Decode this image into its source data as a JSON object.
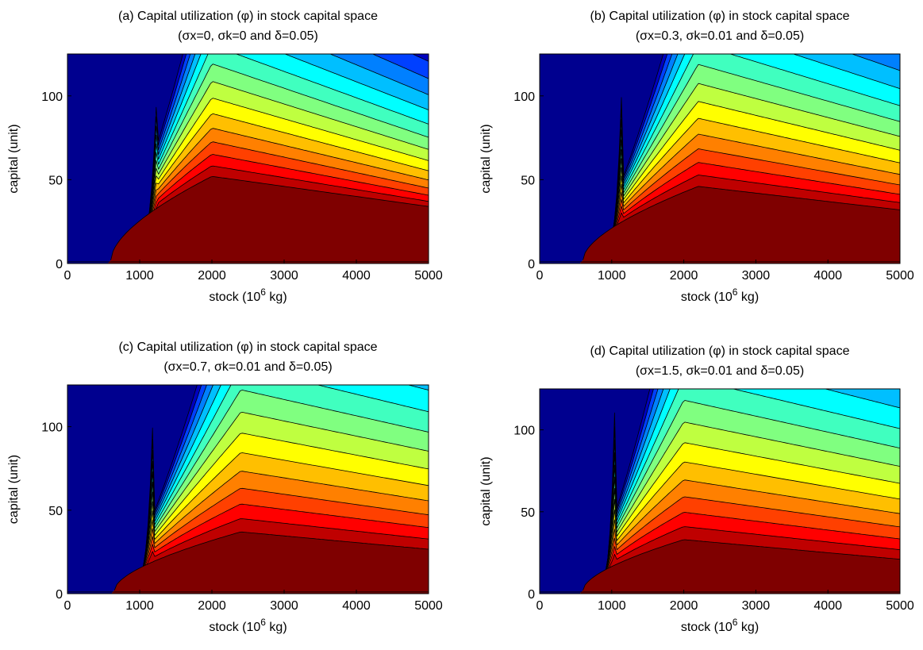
{
  "chart_data": [
    {
      "type": "contour",
      "panel": "a",
      "title_line1": "(a) Capital utilization (φ) in stock capital space",
      "title_line2": "(σx=0, σk=0 and δ=0.05)",
      "xlabel_main": "stock (10",
      "xlabel_sup": "6",
      "xlabel_tail": " kg)",
      "ylabel": "capital (unit)",
      "xlim": [
        0,
        5000
      ],
      "ylim": [
        0,
        125
      ],
      "xticks": [
        0,
        1000,
        2000,
        3000,
        4000,
        5000
      ],
      "yticks": [
        0,
        50,
        100
      ],
      "params": {
        "wall_x": 1250,
        "peak_x": 2000,
        "base": 52,
        "decay_per_1000x": 6,
        "level_spacing": 6,
        "rise_from": 600,
        "rise_to": 1800
      }
    },
    {
      "type": "contour",
      "panel": "b",
      "title_line1": "(b) Capital utilization (φ) in stock capital space",
      "title_line2": "(σx=0.3, σk=0.01 and δ=0.05)",
      "xlabel_main": "stock (10",
      "xlabel_sup": "6",
      "xlabel_tail": " kg)",
      "ylabel": "capital (unit)",
      "xlim": [
        0,
        5000
      ],
      "ylim": [
        0,
        125
      ],
      "xticks": [
        0,
        1000,
        2000,
        3000,
        4000,
        5000
      ],
      "yticks": [
        0,
        50,
        100
      ],
      "params": {
        "wall_x": 1150,
        "peak_x": 2200,
        "base": 46,
        "decay_per_1000x": 5,
        "level_spacing": 6.5,
        "rise_from": 600,
        "rise_to": 1900
      }
    },
    {
      "type": "contour",
      "panel": "c",
      "title_line1": "(c) Capital utilization (φ) in stock capital space",
      "title_line2": "(σx=0.7, σk=0.01 and δ=0.05)",
      "xlabel_main": "stock (10",
      "xlabel_sup": "6",
      "xlabel_tail": " kg)",
      "ylabel": "capital (unit)",
      "xlim": [
        0,
        5000
      ],
      "ylim": [
        0,
        125
      ],
      "xticks": [
        0,
        1000,
        2000,
        3000,
        4000,
        5000
      ],
      "yticks": [
        0,
        50,
        100
      ],
      "params": {
        "wall_x": 1200,
        "peak_x": 2400,
        "base": 37,
        "decay_per_1000x": 4,
        "level_spacing": 7.6,
        "rise_from": 650,
        "rise_to": 2100
      }
    },
    {
      "type": "contour",
      "panel": "d",
      "title_line1": "(d) Capital utilization (φ) in stock capital space",
      "title_line2": "(σx=1.5, σk=0.01 and δ=0.05)",
      "xlabel_main": "stock (10",
      "xlabel_sup": "6",
      "xlabel_tail": " kg)",
      "ylabel": "capital (unit)",
      "xlim": [
        0,
        5000
      ],
      "ylim": [
        0,
        125
      ],
      "xticks": [
        0,
        1000,
        2000,
        3000,
        4000,
        5000
      ],
      "yticks": [
        0,
        50,
        100
      ],
      "params": {
        "wall_x": 1050,
        "peak_x": 2000,
        "base": 33,
        "decay_per_1000x": 4,
        "level_spacing": 7.6,
        "rise_from": 600,
        "rise_to": 1800
      }
    }
  ],
  "colormap": [
    "#7f0000",
    "#bf0000",
    "#ff0000",
    "#ff4000",
    "#ff8000",
    "#ffbf00",
    "#ffff00",
    "#bfff40",
    "#80ff80",
    "#40ffbf",
    "#00ffff",
    "#00bfff",
    "#0080ff",
    "#0040ff",
    "#0000bf",
    "#00008f"
  ]
}
